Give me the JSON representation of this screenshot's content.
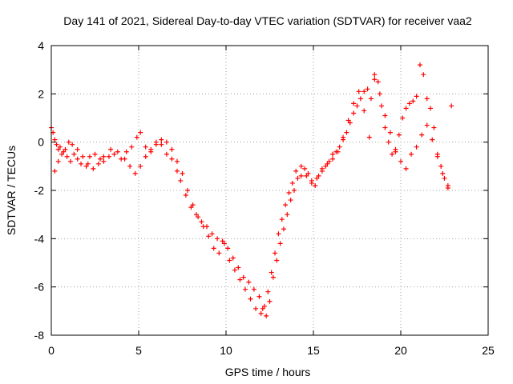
{
  "chart_data": {
    "type": "scatter",
    "title": "Day 141 of 2021, Sidereal Day-to-day VTEC variation (SDTVAR) for receiver vaa2",
    "xlabel": "GPS time / hours",
    "ylabel": "SDTVAR / TECUs",
    "xlim": [
      0,
      25
    ],
    "ylim": [
      -8,
      4
    ],
    "xticks": [
      0,
      5,
      10,
      15,
      20,
      25
    ],
    "yticks": [
      -8,
      -6,
      -4,
      -2,
      0,
      2,
      4
    ],
    "grid": true,
    "marker": "+",
    "color": "#ff0000",
    "series": [
      {
        "name": "SDTVAR",
        "x": [
          0.0,
          0.1,
          0.2,
          0.3,
          0.4,
          0.5,
          0.7,
          0.9,
          1.1,
          1.3,
          1.5,
          1.7,
          2.0,
          2.2,
          2.5,
          2.8,
          3.0,
          3.3,
          3.6,
          4.0,
          4.3,
          4.6,
          4.9,
          5.1,
          5.4,
          5.7,
          6.0,
          6.3,
          6.6,
          6.9,
          7.2,
          7.4,
          7.7,
          8.0,
          8.3,
          8.6,
          8.9,
          9.2,
          9.5,
          9.8,
          10.1,
          10.4,
          10.7,
          11.0,
          11.3,
          11.6,
          11.9,
          12.1,
          12.3,
          12.5,
          12.7,
          12.9,
          13.1,
          13.3,
          13.5,
          13.7,
          13.9,
          14.1,
          14.3,
          14.5,
          14.7,
          14.9,
          15.1,
          15.3,
          15.5,
          15.7,
          15.9,
          16.1,
          16.3,
          16.5,
          16.7,
          16.9,
          17.1,
          17.3,
          17.5,
          17.7,
          17.9,
          18.1,
          18.3,
          18.5,
          18.7,
          18.9,
          19.1,
          19.3,
          19.5,
          19.7,
          19.9,
          20.1,
          20.3,
          20.5,
          20.7,
          20.9,
          21.1,
          21.3,
          21.5,
          21.7,
          21.9,
          22.1,
          22.3,
          22.5,
          22.7,
          22.9
        ],
        "y": [
          0.6,
          0.4,
          0.1,
          -0.1,
          -0.3,
          -0.2,
          -0.4,
          -0.6,
          -0.8,
          -0.5,
          -0.7,
          -0.9,
          -1.0,
          -0.6,
          -0.5,
          -0.7,
          -0.8,
          -0.6,
          -0.5,
          -0.7,
          -0.4,
          -0.2,
          0.2,
          0.4,
          -0.2,
          -0.3,
          0.0,
          -0.1,
          -0.5,
          -0.7,
          -1.2,
          -1.6,
          -2.2,
          -2.7,
          -3.0,
          -3.3,
          -3.5,
          -3.8,
          -4.0,
          -4.1,
          -4.4,
          -4.8,
          -5.2,
          -5.6,
          -5.8,
          -6.1,
          -6.4,
          -6.9,
          -7.2,
          -6.6,
          -5.6,
          -4.9,
          -4.2,
          -3.6,
          -3.0,
          -2.4,
          -2.0,
          -1.5,
          -1.4,
          -1.1,
          -1.3,
          -1.6,
          -1.8,
          -1.4,
          -1.2,
          -1.0,
          -0.8,
          -0.5,
          -0.4,
          -0.2,
          0.1,
          0.4,
          0.8,
          1.2,
          1.5,
          1.8,
          2.1,
          2.2,
          1.8,
          2.6,
          2.5,
          1.5,
          0.6,
          0.0,
          -0.5,
          -0.3,
          0.3,
          1.0,
          1.4,
          1.6,
          1.7,
          1.9,
          3.2,
          2.8,
          1.8,
          1.4,
          0.6,
          -0.5,
          -1.0,
          -1.5,
          -1.9,
          1.5
        ]
      },
      {
        "name": "SDTVAR",
        "x": [
          0.2,
          0.4,
          0.6,
          0.8,
          1.0,
          1.2,
          1.5,
          1.8,
          2.1,
          2.4,
          2.7,
          3.0,
          3.4,
          3.8,
          4.2,
          4.5,
          4.8,
          5.1,
          5.4,
          5.7,
          6.0,
          6.3,
          6.6,
          6.9,
          7.2,
          7.5,
          7.8,
          8.1,
          8.4,
          8.7,
          9.0,
          9.3,
          9.6,
          9.9,
          10.2,
          10.5,
          10.8,
          11.1,
          11.4,
          11.7,
          12.0,
          12.2,
          12.4,
          12.6,
          12.8,
          13.0,
          13.2,
          13.4,
          13.6,
          13.8,
          14.0,
          14.3,
          14.6,
          14.9,
          15.2,
          15.5,
          15.8,
          16.1,
          16.4,
          16.7,
          17.0,
          17.3,
          17.6,
          17.9,
          18.2,
          18.5,
          18.8,
          19.1,
          19.4,
          19.7,
          20.0,
          20.3,
          20.6,
          20.9,
          21.2,
          21.5,
          21.8,
          22.1,
          22.4,
          22.7
        ],
        "y": [
          -1.2,
          -0.8,
          -0.5,
          -0.3,
          0.0,
          -0.1,
          -0.3,
          -0.6,
          -0.9,
          -1.1,
          -0.9,
          -0.6,
          -0.3,
          -0.4,
          -0.7,
          -1.0,
          -1.3,
          -1.0,
          -0.6,
          -0.4,
          -0.1,
          0.1,
          0.0,
          -0.3,
          -0.8,
          -1.3,
          -2.0,
          -2.6,
          -3.1,
          -3.5,
          -3.9,
          -4.4,
          -4.6,
          -4.2,
          -4.9,
          -5.3,
          -5.7,
          -6.1,
          -6.5,
          -6.9,
          -7.1,
          -6.8,
          -6.2,
          -5.4,
          -4.6,
          -3.8,
          -3.2,
          -2.6,
          -2.1,
          -1.7,
          -1.2,
          -1.0,
          -1.4,
          -1.7,
          -1.5,
          -1.1,
          -0.9,
          -0.7,
          -0.4,
          0.2,
          0.9,
          1.6,
          2.1,
          1.3,
          0.2,
          2.8,
          2.0,
          1.1,
          0.4,
          -0.4,
          -0.8,
          -1.1,
          -0.5,
          -0.2,
          0.3,
          0.7,
          0.1,
          -0.6,
          -1.3,
          -1.8
        ]
      }
    ]
  }
}
